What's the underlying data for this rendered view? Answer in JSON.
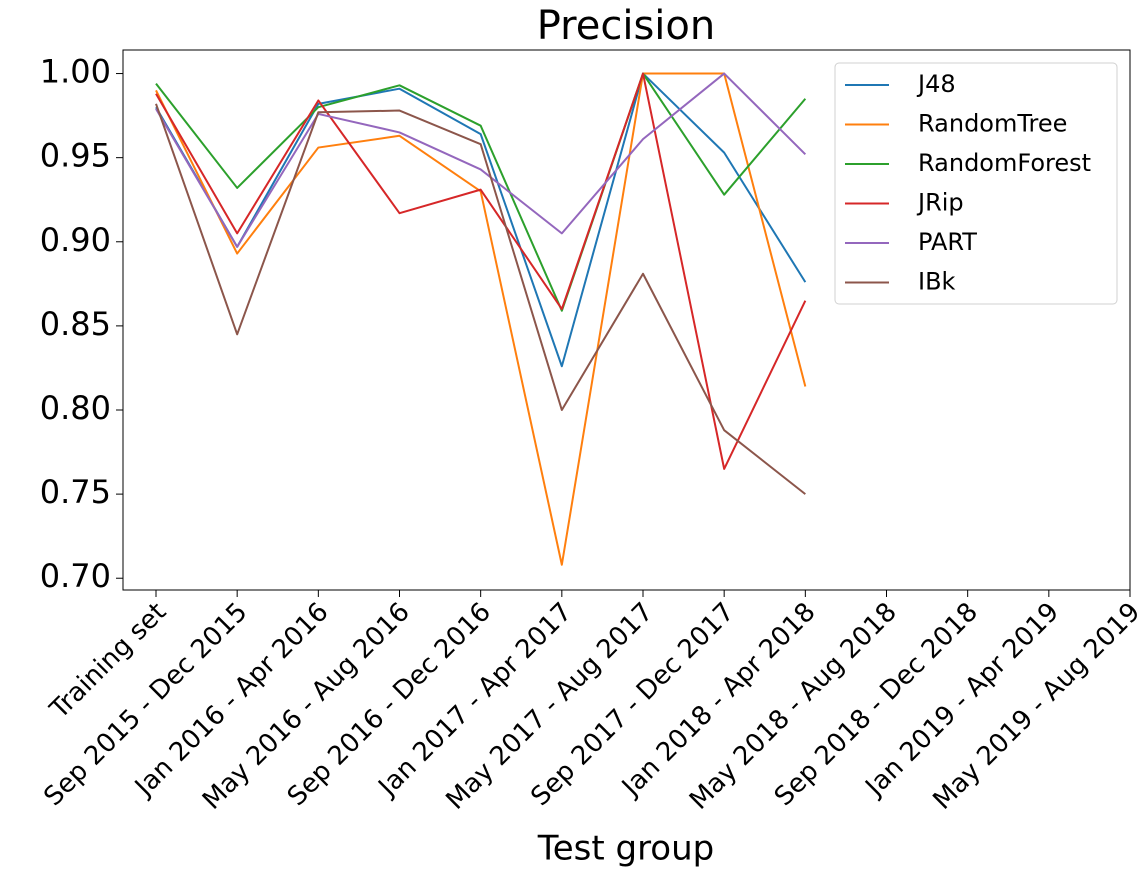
{
  "chart_data": {
    "type": "line",
    "title": "Precision",
    "x_label": "Test group",
    "categories": [
      "Training set",
      "Sep 2015 - Dec 2015",
      "Jan 2016 - Apr 2016",
      "May 2016 - Aug 2016",
      "Sep 2016 - Dec 2016",
      "Jan 2017 - Apr 2017",
      "May 2017 - Aug 2017",
      "Sep 2017 - Dec 2017",
      "Jan 2018 - Apr 2018",
      "May 2018 - Aug 2018",
      "Sep 2018 - Dec 2018",
      "Jan 2019 - Apr 2019",
      "May 2019 - Aug 2019"
    ],
    "series": [
      {
        "name": "J48",
        "color": "#1f77b4",
        "values": [
          0.98,
          0.897,
          0.982,
          0.991,
          0.964,
          0.826,
          1.0,
          0.953,
          0.876,
          null,
          null,
          null,
          null
        ]
      },
      {
        "name": "RandomTree",
        "color": "#ff7f0e",
        "values": [
          0.99,
          0.893,
          0.956,
          0.963,
          0.93,
          0.708,
          1.0,
          1.0,
          0.814,
          null,
          null,
          null,
          null
        ]
      },
      {
        "name": "RandomForest",
        "color": "#2ca02c",
        "values": [
          0.994,
          0.932,
          0.98,
          0.993,
          0.969,
          0.859,
          1.0,
          0.928,
          0.985,
          null,
          null,
          null,
          null
        ]
      },
      {
        "name": "JRip",
        "color": "#d62728",
        "values": [
          0.988,
          0.905,
          0.984,
          0.917,
          0.931,
          0.86,
          1.0,
          0.765,
          0.865,
          null,
          null,
          null,
          null
        ]
      },
      {
        "name": "PART",
        "color": "#9467bd",
        "values": [
          0.979,
          0.897,
          0.976,
          0.965,
          0.943,
          0.905,
          0.961,
          1.0,
          0.952,
          null,
          null,
          null,
          null
        ]
      },
      {
        "name": "IBk",
        "color": "#8c564b",
        "values": [
          0.982,
          0.845,
          0.977,
          0.978,
          0.958,
          0.8,
          0.881,
          0.788,
          0.75,
          null,
          null,
          null,
          null
        ]
      }
    ],
    "ylim": [
      0.693,
      1.014
    ],
    "yticks": [
      {
        "value": 0.7,
        "label": "0.70"
      },
      0.75,
      {
        "value": 0.8,
        "label": "0.80"
      },
      0.85,
      {
        "value": 0.9,
        "label": "0.90"
      },
      0.95,
      {
        "value": 1.0,
        "label": "1.00"
      }
    ],
    "legend": "upper right",
    "grid": false
  }
}
